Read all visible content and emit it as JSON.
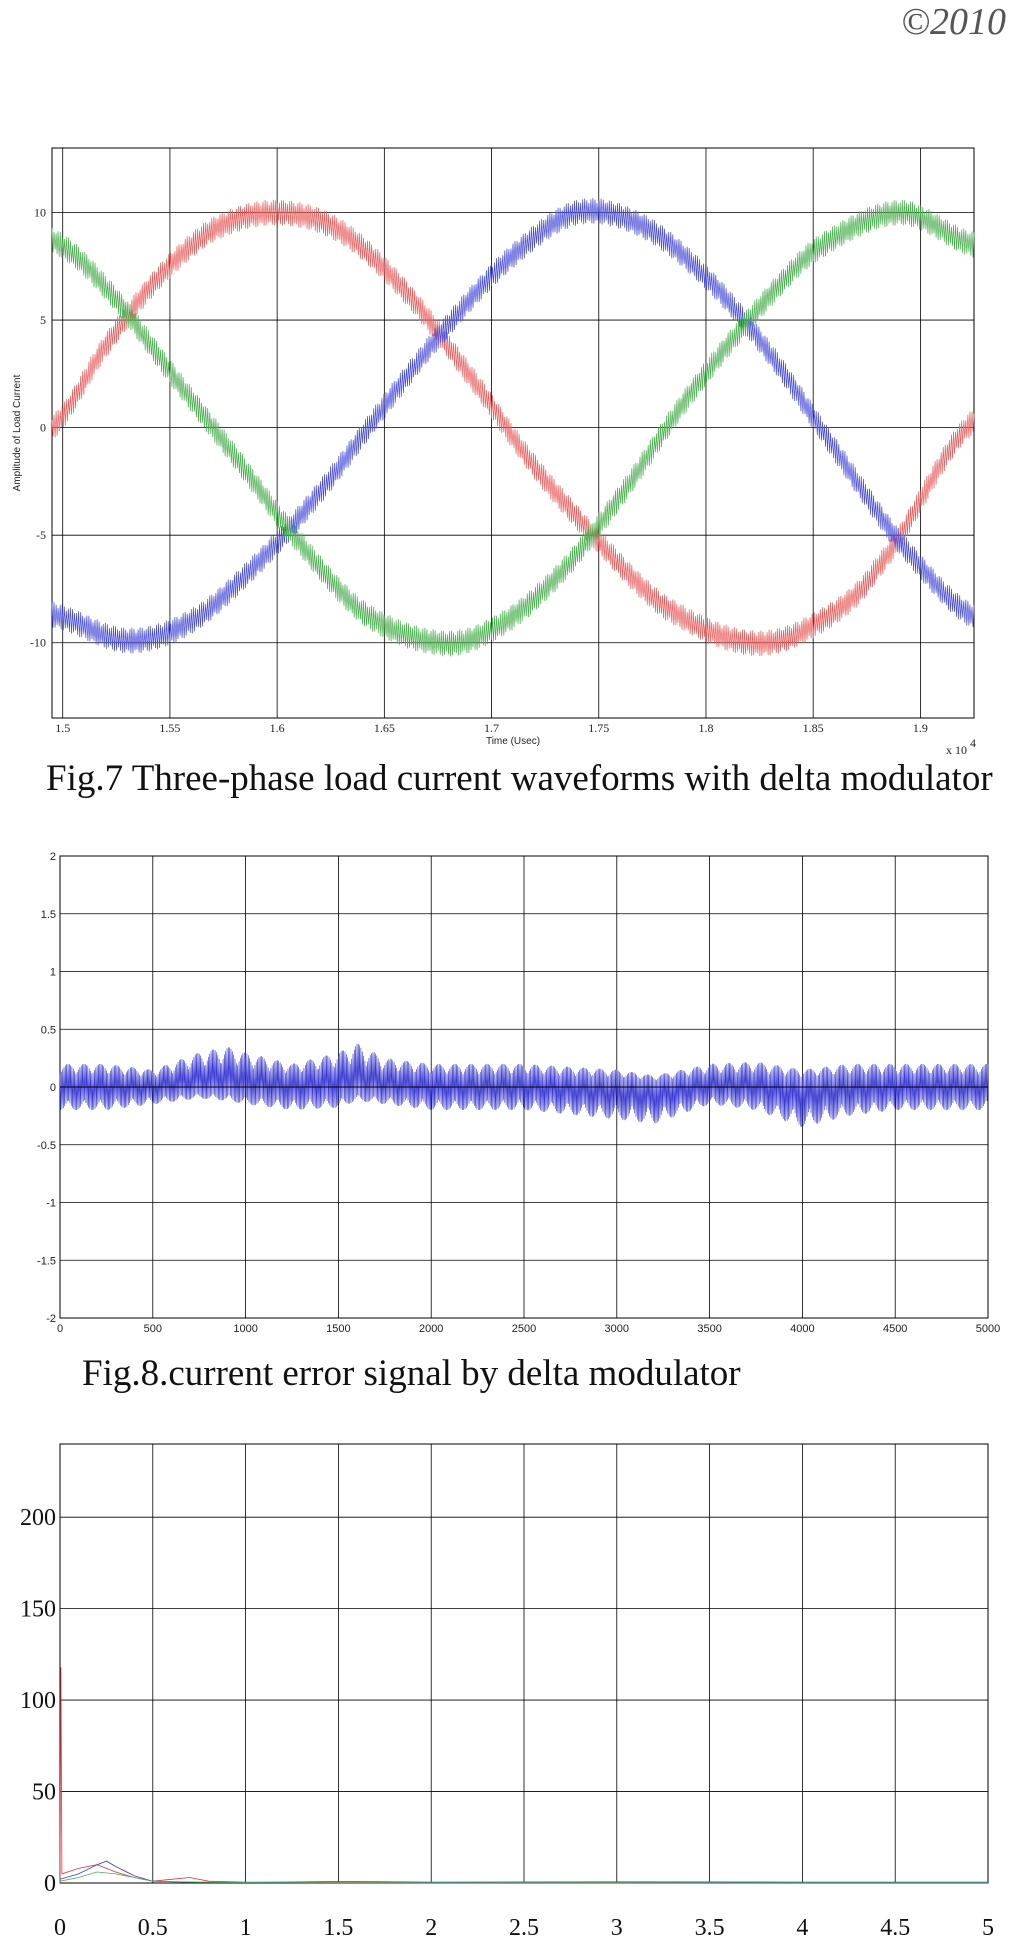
{
  "header": {
    "copyright": "©2010"
  },
  "captions": {
    "fig7": "Fig.7 Three-phase load current waveforms with delta modulator",
    "fig8": "Fig.8.current error signal by delta modulator"
  },
  "chart_data": [
    {
      "type": "line",
      "title": "",
      "xlabel": "Time (Usec)",
      "ylabel": "Amplitude of Load Current",
      "x_multiplier": "x 10",
      "x_multiplier_exp": "4",
      "xlim": [
        1.495,
        1.925
      ],
      "ylim": [
        -13.5,
        13
      ],
      "x_ticks": [
        1.5,
        1.55,
        1.6,
        1.65,
        1.7,
        1.75,
        1.8,
        1.85,
        1.9
      ],
      "x_tick_labels": [
        "1.5",
        "1.55",
        "1.6",
        "1.65",
        "1.7",
        "1.75",
        "1.8",
        "1.85",
        "1.9"
      ],
      "y_ticks": [
        -10,
        -5,
        0,
        5,
        10
      ],
      "y_tick_labels": [
        "-10",
        "-5",
        "0",
        "5",
        "10"
      ],
      "grid": true,
      "series": [
        {
          "color": "#e8605f",
          "x": [
            1.495,
            1.52,
            1.545,
            1.57,
            1.6,
            1.63,
            1.66,
            1.69,
            1.72,
            1.75,
            1.78,
            1.82,
            1.85,
            1.88,
            1.925
          ],
          "y": [
            0,
            3.8,
            7.0,
            9.2,
            10,
            9.1,
            6.3,
            2.4,
            -1.8,
            -5.3,
            -8.3,
            -10,
            -9.2,
            -6.5,
            0.3
          ]
        },
        {
          "color": "#4a4ed8",
          "x": [
            1.495,
            1.53,
            1.56,
            1.59,
            1.62,
            1.65,
            1.68,
            1.71,
            1.74,
            1.77,
            1.8,
            1.83,
            1.86,
            1.89,
            1.925
          ],
          "y": [
            -8.7,
            -9.9,
            -9.0,
            -6.4,
            -3.0,
            1.0,
            4.8,
            8.0,
            10,
            9.4,
            7.0,
            3.4,
            -1.0,
            -5.3,
            -8.8
          ]
        },
        {
          "color": "#4caf50",
          "x": [
            1.495,
            1.52,
            1.55,
            1.58,
            1.61,
            1.64,
            1.675,
            1.7,
            1.73,
            1.76,
            1.79,
            1.82,
            1.85,
            1.89,
            1.925
          ],
          "y": [
            8.7,
            6.5,
            2.6,
            -1.3,
            -5.3,
            -8.6,
            -10,
            -9.4,
            -7.0,
            -3.2,
            1.2,
            5.0,
            8.2,
            10,
            8.5
          ]
        }
      ]
    },
    {
      "type": "line",
      "title": "",
      "xlabel": "",
      "ylabel": "",
      "xlim": [
        0,
        5000
      ],
      "ylim": [
        -2,
        2
      ],
      "x_ticks": [
        0,
        500,
        1000,
        1500,
        2000,
        2500,
        3000,
        3500,
        4000,
        4500,
        5000
      ],
      "x_tick_labels": [
        "0",
        "500",
        "1000",
        "1500",
        "2000",
        "2500",
        "3000",
        "3500",
        "4000",
        "4500",
        "5000"
      ],
      "y_ticks": [
        -2,
        -1.5,
        -1,
        -0.5,
        0,
        0.5,
        1,
        1.5,
        2
      ],
      "y_tick_labels": [
        "-2",
        "-1.5",
        "-1",
        "-0.5",
        "0",
        "0.5",
        "1",
        "1.5",
        "2"
      ],
      "grid": true,
      "series": [
        {
          "color": "#3a3ad0",
          "band": "oscillating error signal between about -0.2 and 0.2",
          "x": [
            0,
            250,
            500,
            750,
            900,
            1000,
            1250,
            1500,
            1600,
            1750,
            2000,
            2500,
            3000,
            3200,
            3500,
            3750,
            4000,
            4250,
            4500,
            5000
          ],
          "upper": [
            0.2,
            0.2,
            0.15,
            0.3,
            0.35,
            0.3,
            0.2,
            0.3,
            0.38,
            0.25,
            0.2,
            0.2,
            0.15,
            0.1,
            0.2,
            0.22,
            0.15,
            0.2,
            0.2,
            0.2
          ],
          "lower": [
            -0.2,
            -0.2,
            -0.15,
            -0.1,
            -0.12,
            -0.15,
            -0.2,
            -0.18,
            -0.12,
            -0.15,
            -0.2,
            -0.2,
            -0.28,
            -0.32,
            -0.15,
            -0.2,
            -0.35,
            -0.25,
            -0.2,
            -0.2
          ]
        }
      ]
    },
    {
      "type": "line",
      "title": "",
      "xlabel": "",
      "ylabel": "",
      "xlim": [
        0,
        5
      ],
      "ylim": [
        0,
        240
      ],
      "x_ticks": [
        0,
        0.5,
        1,
        1.5,
        2,
        2.5,
        3,
        3.5,
        4,
        4.5,
        5
      ],
      "x_tick_labels": [
        "0",
        "0.5",
        "1",
        "1.5",
        "2",
        "2.5",
        "3",
        "3.5",
        "4",
        "4.5",
        "5"
      ],
      "y_ticks": [
        0,
        50,
        100,
        150,
        200
      ],
      "y_tick_labels": [
        "0",
        "50",
        "100",
        "150",
        "200"
      ],
      "grid": true,
      "series": [
        {
          "color": "#d83a3a",
          "x": [
            0,
            0.005,
            0.01,
            0.1,
            0.2,
            0.3,
            0.4,
            0.5,
            0.6,
            0.7,
            0.8,
            1.0,
            1.5,
            5
          ],
          "y": [
            0,
            118,
            5,
            8,
            10,
            6,
            3,
            1,
            2,
            3,
            1,
            0.5,
            0.3,
            0.2
          ]
        },
        {
          "color": "#3a3ad0",
          "x": [
            0,
            0.1,
            0.2,
            0.25,
            0.3,
            0.4,
            0.5,
            0.7,
            1.0,
            1.5,
            2.0,
            3.0,
            4.0,
            5.0
          ],
          "y": [
            2,
            5,
            10,
            12,
            9,
            4,
            1,
            0.5,
            0.3,
            0.8,
            0.5,
            0.6,
            0.5,
            0.5
          ]
        },
        {
          "color": "#4caf50",
          "x": [
            0,
            0.1,
            0.2,
            0.3,
            0.4,
            0.5,
            0.7,
            1.0,
            2.0,
            5.0
          ],
          "y": [
            1,
            3,
            6,
            5,
            3,
            1,
            0.5,
            0.2,
            0.1,
            0.1
          ]
        }
      ]
    }
  ]
}
